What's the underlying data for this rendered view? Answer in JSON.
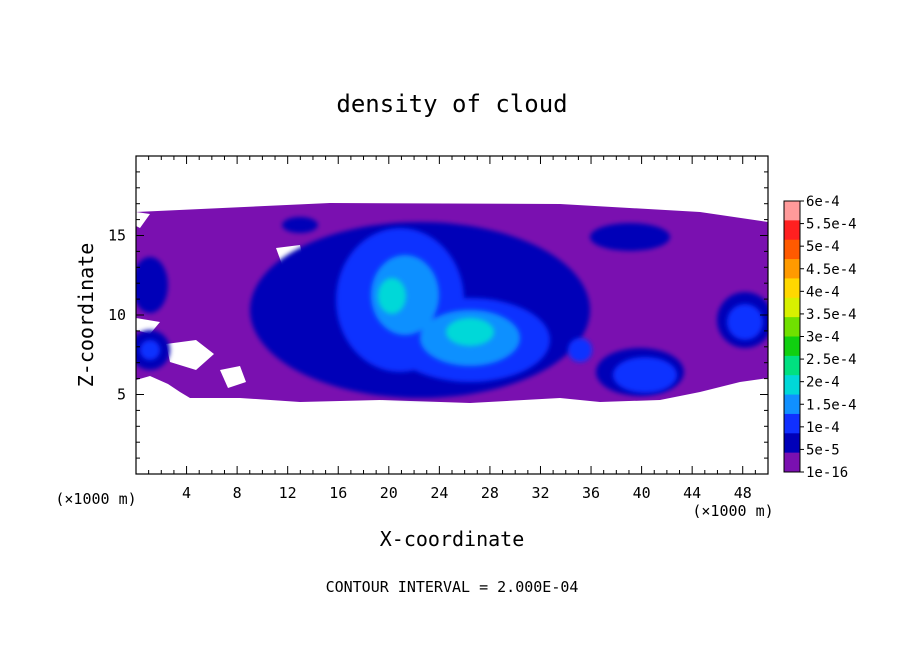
{
  "chart_data": {
    "type": "heatmap",
    "title": "density of cloud",
    "xlabel": "X-coordinate",
    "ylabel": "Z-coordinate",
    "x_unit_label": "(×1000 m)",
    "y_unit_label": "(×1000 m)",
    "xlim": [
      0,
      50
    ],
    "ylim": [
      0,
      20
    ],
    "x_ticks": [
      4,
      8,
      12,
      16,
      20,
      24,
      28,
      32,
      36,
      40,
      44,
      48
    ],
    "x_tick_labels": [
      "4",
      "8",
      "12",
      "16",
      "20",
      "24",
      "28",
      "32",
      "36",
      "40",
      "44",
      "48"
    ],
    "y_ticks": [
      5,
      10,
      15
    ],
    "y_tick_labels": [
      "5",
      "10",
      "15"
    ],
    "colorbar": {
      "labels": [
        "6e-4",
        "5.5e-4",
        "5e-4",
        "4.5e-4",
        "4e-4",
        "3.5e-4",
        "3e-4",
        "2.5e-4",
        "2e-4",
        "1.5e-4",
        "1e-4",
        "5e-5",
        "1e-16"
      ],
      "values": [
        0.0006,
        0.00055,
        0.0005,
        0.00045,
        0.0004,
        0.00035,
        0.0003,
        0.00025,
        0.0002,
        0.00015,
        0.0001,
        5e-05,
        1e-16
      ],
      "colors": [
        "#ff9a9a",
        "#ff2020",
        "#ff5a00",
        "#ff9a00",
        "#ffd800",
        "#d8f000",
        "#70e000",
        "#10d010",
        "#00e080",
        "#00d8d8",
        "#1090ff",
        "#1030ff",
        "#0000b8",
        "#7a10b0"
      ]
    },
    "cloud_regions": [
      {
        "level": "1e-16",
        "x_range": [
          0,
          50
        ],
        "z_range": [
          4.5,
          16.8
        ]
      },
      {
        "level": "5e-5",
        "x_range": [
          8,
          48
        ],
        "z_range": [
          5,
          15
        ]
      },
      {
        "level": "1e-4",
        "x_range": [
          16,
          44
        ],
        "z_range": [
          5.5,
          14.5
        ]
      },
      {
        "level": "1.5e-4",
        "x_range": [
          18,
          32
        ],
        "z_range": [
          7,
          13.5
        ]
      },
      {
        "level": "2e-4",
        "x_range": [
          19,
          30
        ],
        "z_range": [
          7.5,
          12.5
        ]
      }
    ],
    "annotation": "CONTOUR INTERVAL = 2.000E-04"
  }
}
